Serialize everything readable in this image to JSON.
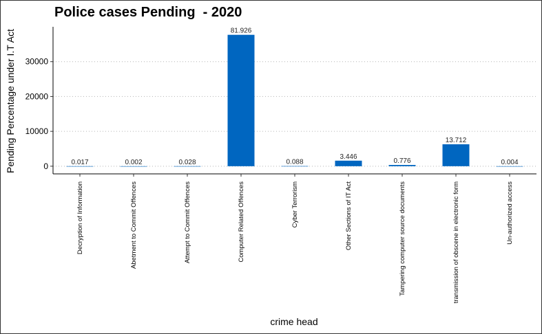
{
  "chart_data": {
    "type": "bar",
    "title": "Police cases Pending  - 2020",
    "xlabel": "crime head",
    "ylabel": "Pending Percentage under I.T Act",
    "ylim": [
      -2200,
      40000
    ],
    "yticks": [
      0,
      10000,
      20000,
      30000
    ],
    "grid": "horizontal-dotted",
    "bar_color": "#0066c0",
    "categories": [
      "Decryption of Information",
      "Abetment to Commit Offences",
      "Attempt to Commit Offences",
      "Computer Related Offences",
      "Cyber Terrorism",
      "Other Sections of IT Act",
      "Tampering computer source documents",
      "transmission of obscene  in electronic form",
      "Un-authorized access"
    ],
    "values": [
      8,
      1,
      13,
      37700,
      41,
      1590,
      358,
      6300,
      2
    ],
    "data_labels": [
      "0.017",
      "0.002",
      "0.028",
      "81.926",
      "0.088",
      "3.446",
      "0.776",
      "13.712",
      "0.004"
    ]
  }
}
